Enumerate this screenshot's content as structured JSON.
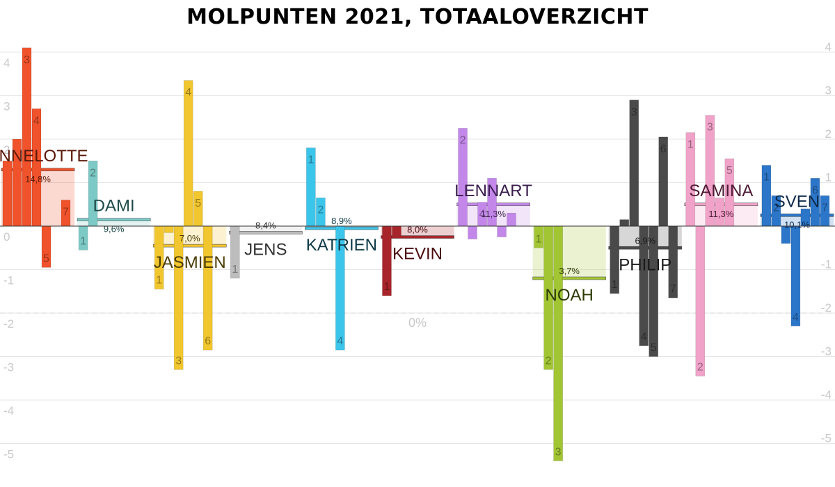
{
  "chart_data": {
    "type": "bar",
    "title": "MOLPUNTEN 2021, TOTAALOVERZICHT",
    "ylim": [
      -5.4,
      4.2
    ],
    "yticks": [
      4,
      3,
      2,
      1,
      0,
      -1,
      -2,
      -3,
      -4,
      -5
    ],
    "ytick_labels_left": [
      "4",
      "3",
      "2",
      "1",
      "0",
      "-1",
      "-2",
      "-3",
      "-4",
      "-5"
    ],
    "ytick_labels_right": [
      "4",
      "3",
      "2",
      "1",
      "",
      "-1",
      "-2",
      "-3",
      "-4",
      "-5"
    ],
    "reference_line": {
      "value": -2,
      "label": "0%"
    },
    "grid": true,
    "series": [
      {
        "name": "ANNELOTTE",
        "color": "#f0522b",
        "label_color": "#5a1808",
        "total": 1.3,
        "percentage": "14,8%",
        "episodes": [
          {
            "label": "",
            "value": 1.5
          },
          {
            "label": "",
            "value": 2.0
          },
          {
            "label": "3",
            "value": 4.1
          },
          {
            "label": "4",
            "value": 2.7
          },
          {
            "label": "5",
            "value": -0.95
          },
          {
            "label": "",
            "value": 0
          },
          {
            "label": "7",
            "value": 0.6
          }
        ]
      },
      {
        "name": "DAMI",
        "color": "#7cc9c5",
        "label_color": "#1f4a4a",
        "total": 0.15,
        "percentage": "9,6%",
        "episodes": [
          {
            "label": "1",
            "value": -0.55
          },
          {
            "label": "2",
            "value": 1.5
          }
        ]
      },
      {
        "name": "JASMIEN",
        "color": "#f1c62e",
        "label_color": "#4a3c05",
        "total": -0.45,
        "percentage": "7,0%",
        "episodes": [
          {
            "label": "1",
            "value": -1.45
          },
          {
            "label": "",
            "value": -0.15
          },
          {
            "label": "3",
            "value": -3.3
          },
          {
            "label": "4",
            "value": 3.35
          },
          {
            "label": "5",
            "value": 0.8
          },
          {
            "label": "6",
            "value": -2.85
          }
        ]
      },
      {
        "name": "JENS",
        "color": "#bdbdbd",
        "label_color": "#333333",
        "total": -0.15,
        "percentage": "8,4%",
        "episodes": [
          {
            "label": "1",
            "value": -1.2
          }
        ]
      },
      {
        "name": "KATRIEN",
        "color": "#3cc5ea",
        "label_color": "#0e3a47",
        "total": -0.05,
        "percentage": "8,9%",
        "episodes": [
          {
            "label": "1",
            "value": 1.8
          },
          {
            "label": "2",
            "value": 0.65
          },
          {
            "label": "",
            "value": 0
          },
          {
            "label": "4",
            "value": -2.85
          }
        ]
      },
      {
        "name": "KEVIN",
        "color": "#a8252b",
        "label_color": "#4a0a0d",
        "total": -0.25,
        "percentage": "8,0%",
        "episodes": [
          {
            "label": "1",
            "value": -1.6
          },
          {
            "label": "",
            "value": -0.25
          }
        ]
      },
      {
        "name": "LENNART",
        "color": "#c387ea",
        "label_color": "#3a1c4d",
        "total": 0.5,
        "percentage": "11,3%",
        "episodes": [
          {
            "label": "2",
            "value": 2.25
          },
          {
            "label": "",
            "value": -0.3
          },
          {
            "label": "4",
            "value": 0.55
          },
          {
            "label": "",
            "value": 1.1
          },
          {
            "label": "",
            "value": -0.25
          },
          {
            "label": "",
            "value": 0.3
          }
        ]
      },
      {
        "name": "NOAH",
        "color": "#a2c534",
        "label_color": "#2c3a05",
        "total": -1.2,
        "percentage": "3,7%",
        "episodes": [
          {
            "label": "1",
            "value": -0.5
          },
          {
            "label": "2",
            "value": -3.3
          },
          {
            "label": "3",
            "value": -5.4
          }
        ]
      },
      {
        "name": "PHILIP",
        "color": "#4a4a4a",
        "label_color": "#1a1a1a",
        "total": -0.5,
        "percentage": "6,9%",
        "episodes": [
          {
            "label": "1",
            "value": -1.55
          },
          {
            "label": "",
            "value": 0.15
          },
          {
            "label": "3",
            "value": 2.9
          },
          {
            "label": "4",
            "value": -2.75
          },
          {
            "label": "5",
            "value": -3.0
          },
          {
            "label": "6",
            "value": 2.05
          },
          {
            "label": "7",
            "value": -1.65
          }
        ]
      },
      {
        "name": "SAMINA",
        "color": "#f0a2c8",
        "label_color": "#4d1a33",
        "total": 0.5,
        "percentage": "11,3%",
        "episodes": [
          {
            "label": "1",
            "value": 2.15
          },
          {
            "label": "2",
            "value": -3.45
          },
          {
            "label": "3",
            "value": 2.55
          },
          {
            "label": "",
            "value": 0.65
          },
          {
            "label": "5",
            "value": 1.55
          }
        ]
      },
      {
        "name": "SVEN",
        "color": "#2c76c9",
        "label_color": "#0c2849",
        "total": 0.25,
        "percentage": "10,1%",
        "episodes": [
          {
            "label": "1",
            "value": 1.4
          },
          {
            "label": "2",
            "value": 0.7
          },
          {
            "label": "",
            "value": -0.4
          },
          {
            "label": "4",
            "value": -2.3
          },
          {
            "label": "",
            "value": 0.4
          },
          {
            "label": "6",
            "value": 1.1
          },
          {
            "label": "7",
            "value": 0.7
          }
        ]
      }
    ]
  }
}
